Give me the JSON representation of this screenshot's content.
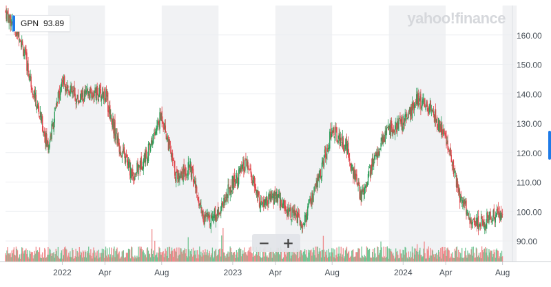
{
  "chart_data": {
    "type": "candlestick",
    "symbol": "GPN",
    "last_price": "93.89",
    "watermark": "yahoo!finance",
    "y_ticks": [
      "160.00",
      "150.00",
      "140.00",
      "130.00",
      "120.00",
      "110.00",
      "100.00",
      "90.00"
    ],
    "x_ticks": [
      "2022",
      "Apr",
      "Aug",
      "2023",
      "Apr",
      "Aug",
      "2024",
      "Apr",
      "Aug"
    ],
    "ylim": [
      83,
      170
    ],
    "x_range": [
      "2021-09",
      "2024-08"
    ],
    "grid": true,
    "colors": {
      "up": "#2e9e5b",
      "down": "#e0474c",
      "shade": "#f1f2f4",
      "axis_text": "#464e56",
      "badge": "#1e7be8",
      "volume_up": "#72c493",
      "volume_down": "#ef8a8c"
    },
    "approx_close_path": [
      {
        "date": "2021-09",
        "close": 168
      },
      {
        "date": "2021-10",
        "close": 160
      },
      {
        "date": "2021-11",
        "close": 140
      },
      {
        "date": "2021-12",
        "close": 122
      },
      {
        "date": "2022-01",
        "close": 145
      },
      {
        "date": "2022-02",
        "close": 138
      },
      {
        "date": "2022-03",
        "close": 140
      },
      {
        "date": "2022-04",
        "close": 140
      },
      {
        "date": "2022-05",
        "close": 122
      },
      {
        "date": "2022-06",
        "close": 112
      },
      {
        "date": "2022-07",
        "close": 120
      },
      {
        "date": "2022-08",
        "close": 133
      },
      {
        "date": "2022-09",
        "close": 112
      },
      {
        "date": "2022-10",
        "close": 115
      },
      {
        "date": "2022-11",
        "close": 97
      },
      {
        "date": "2022-12",
        "close": 100
      },
      {
        "date": "2023-01",
        "close": 110
      },
      {
        "date": "2023-02",
        "close": 116
      },
      {
        "date": "2023-03",
        "close": 102
      },
      {
        "date": "2023-04",
        "close": 105
      },
      {
        "date": "2023-05",
        "close": 100
      },
      {
        "date": "2023-06",
        "close": 96
      },
      {
        "date": "2023-07",
        "close": 110
      },
      {
        "date": "2023-08",
        "close": 128
      },
      {
        "date": "2023-09",
        "close": 122
      },
      {
        "date": "2023-10",
        "close": 105
      },
      {
        "date": "2023-11",
        "close": 118
      },
      {
        "date": "2023-12",
        "close": 128
      },
      {
        "date": "2024-01",
        "close": 130
      },
      {
        "date": "2024-02",
        "close": 138
      },
      {
        "date": "2024-03",
        "close": 134
      },
      {
        "date": "2024-04",
        "close": 125
      },
      {
        "date": "2024-05",
        "close": 105
      },
      {
        "date": "2024-06",
        "close": 95
      },
      {
        "date": "2024-07",
        "close": 98
      },
      {
        "date": "2024-08",
        "close": 100
      }
    ]
  }
}
